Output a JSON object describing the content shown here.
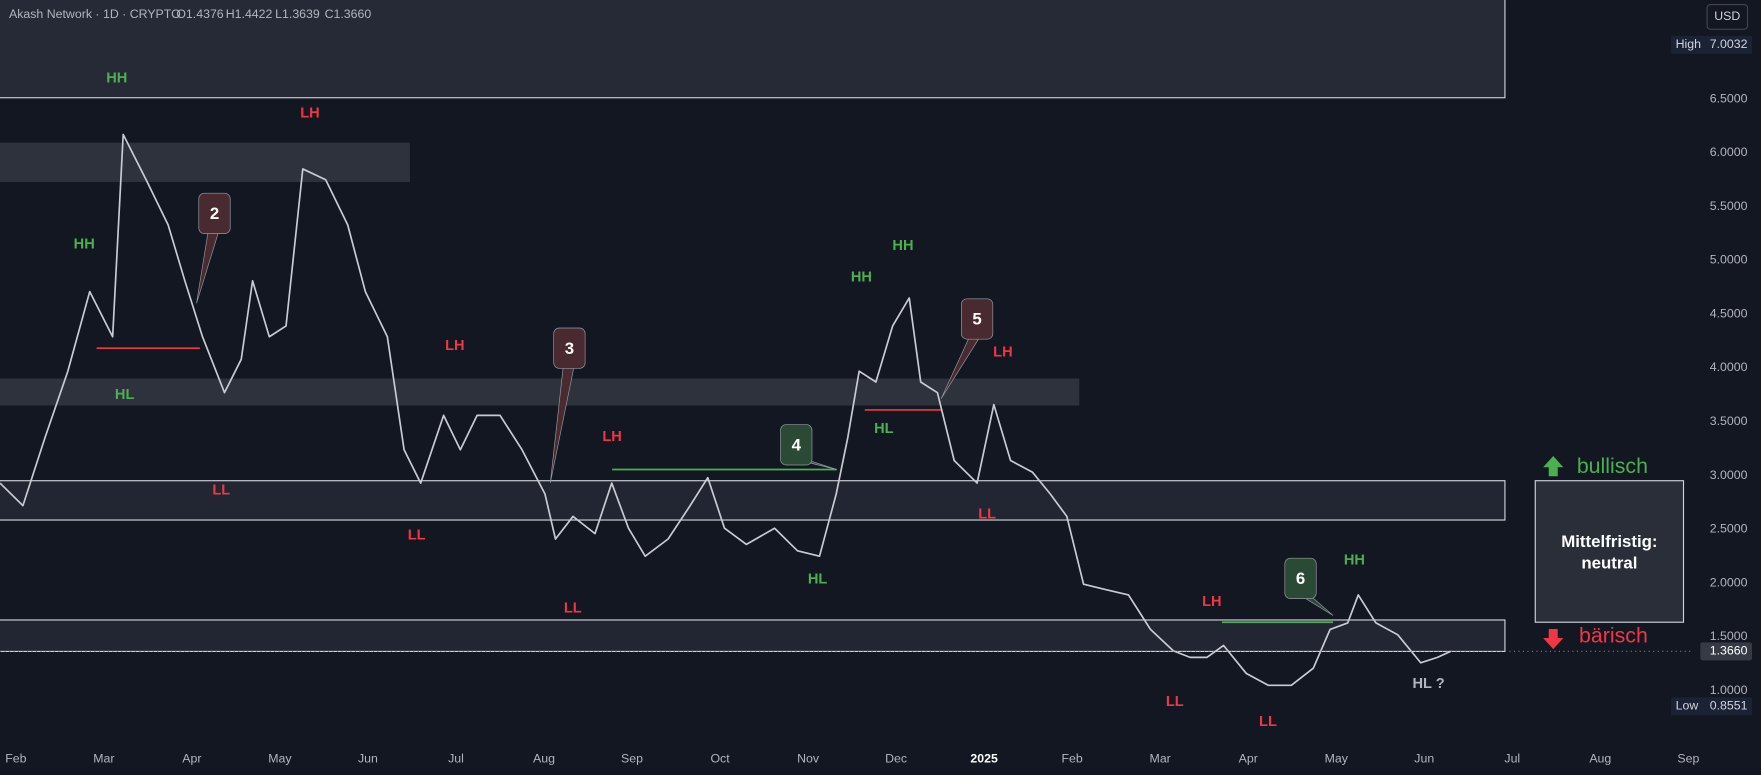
{
  "chart_data": {
    "type": "line",
    "title": "Akash Network · 1D · CRYPTO",
    "ohlc_labels": [
      "O1.4376",
      "H1.4422",
      "L1.3639",
      "C1.3660"
    ],
    "currency": "USD",
    "color": "#c9cbd3",
    "x": [
      -0.18,
      0.08,
      0.33,
      0.59,
      0.84,
      1.1,
      1.22,
      1.48,
      1.73,
      1.92,
      2.12,
      2.37,
      2.56,
      2.69,
      2.88,
      3.07,
      3.26,
      3.52,
      3.77,
      3.97,
      4.22,
      4.41,
      4.6,
      4.86,
      5.05,
      5.24,
      5.5,
      5.75,
      6.01,
      6.13,
      6.33,
      6.58,
      6.77,
      6.96,
      7.15,
      7.41,
      7.66,
      7.86,
      8.05,
      8.3,
      8.62,
      8.88,
      9.13,
      9.32,
      9.45,
      9.58,
      9.77,
      9.96,
      10.15,
      10.28,
      10.47,
      10.66,
      10.92,
      11.11,
      11.3,
      11.55,
      11.75,
      11.94,
      12.13,
      12.38,
      12.64,
      12.89,
      13.15,
      13.34,
      13.53,
      13.72,
      13.98,
      14.23,
      14.49,
      14.74,
      14.93,
      15.13,
      15.25,
      15.45,
      15.7,
      15.96,
      16.15,
      16.3
    ],
    "values": [
      2.93,
      2.72,
      3.35,
      3.97,
      4.71,
      4.29,
      6.17,
      5.75,
      5.33,
      4.81,
      4.29,
      3.77,
      4.08,
      4.81,
      4.29,
      4.39,
      5.85,
      5.75,
      5.33,
      4.71,
      4.29,
      3.24,
      2.93,
      3.56,
      3.24,
      3.56,
      3.56,
      3.24,
      2.83,
      2.41,
      2.62,
      2.46,
      2.93,
      2.51,
      2.25,
      2.41,
      2.72,
      2.98,
      2.51,
      2.36,
      2.51,
      2.3,
      2.25,
      2.83,
      3.35,
      3.97,
      3.87,
      4.39,
      4.65,
      3.87,
      3.77,
      3.14,
      2.93,
      3.66,
      3.14,
      3.03,
      2.83,
      2.62,
      1.99,
      1.94,
      1.89,
      1.57,
      1.37,
      1.31,
      1.31,
      1.42,
      1.16,
      1.05,
      1.05,
      1.21,
      1.57,
      1.63,
      1.89,
      1.63,
      1.52,
      1.26,
      1.31,
      1.366
    ],
    "xlim": [
      -0.18,
      19.06
    ],
    "xticks": [
      {
        "value": 0,
        "label": "Feb"
      },
      {
        "value": 1,
        "label": "Mar"
      },
      {
        "value": 2,
        "label": "Apr"
      },
      {
        "value": 3,
        "label": "May"
      },
      {
        "value": 4,
        "label": "Jun"
      },
      {
        "value": 5,
        "label": "Jul"
      },
      {
        "value": 6,
        "label": "Aug"
      },
      {
        "value": 7,
        "label": "Sep"
      },
      {
        "value": 8,
        "label": "Oct"
      },
      {
        "value": 9,
        "label": "Nov"
      },
      {
        "value": 10,
        "label": "Dec"
      },
      {
        "value": 11,
        "label": "2025"
      },
      {
        "value": 12,
        "label": "Feb"
      },
      {
        "value": 13,
        "label": "Mar"
      },
      {
        "value": 14,
        "label": "Apr"
      },
      {
        "value": 15,
        "label": "May"
      },
      {
        "value": 16,
        "label": "Jun"
      },
      {
        "value": 17,
        "label": "Jul"
      },
      {
        "value": 18,
        "label": "Aug"
      },
      {
        "value": 19,
        "label": "Sep"
      }
    ],
    "ylim": [
      0.53,
      7.42
    ],
    "yticks": [
      {
        "value": 1,
        "label": "1.0000"
      },
      {
        "value": 1.5,
        "label": "1.5000"
      },
      {
        "value": 2,
        "label": "2.0000"
      },
      {
        "value": 2.5,
        "label": "2.5000"
      },
      {
        "value": 3,
        "label": "3.0000"
      },
      {
        "value": 3.5,
        "label": "3.5000"
      },
      {
        "value": 4,
        "label": "4.0000"
      },
      {
        "value": 4.5,
        "label": "4.5000"
      },
      {
        "value": 5,
        "label": "5.0000"
      },
      {
        "value": 5.5,
        "label": "5.5000"
      },
      {
        "value": 6,
        "label": "6.0000"
      },
      {
        "value": 6.5,
        "label": "6.5000"
      }
    ],
    "grid": false,
    "high": {
      "name": "High",
      "value": 7.0032
    },
    "low": {
      "name": "Low",
      "value": 0.8551
    },
    "last_price": {
      "value": 1.366,
      "label": "1.3660"
    },
    "swing_labels": [
      {
        "text": "HH",
        "color": "#4caf50"
      },
      {
        "text": "HH",
        "color": "#4caf50"
      },
      {
        "text": "HL",
        "color": "#4caf50"
      },
      {
        "text": "LL",
        "color": "#f23645"
      },
      {
        "text": "LH",
        "color": "#f23645"
      },
      {
        "text": "LH",
        "color": "#f23645"
      },
      {
        "text": "LL",
        "color": "#f23645"
      },
      {
        "text": "LL",
        "color": "#f23645"
      },
      {
        "text": "LH",
        "color": "#f23645"
      },
      {
        "text": "HL",
        "color": "#4caf50"
      },
      {
        "text": "HH",
        "color": "#4caf50"
      },
      {
        "text": "HH",
        "color": "#4caf50"
      },
      {
        "text": "HL",
        "color": "#4caf50"
      },
      {
        "text": "LH",
        "color": "#f23645"
      },
      {
        "text": "LL",
        "color": "#f23645"
      },
      {
        "text": "LL",
        "color": "#f23645"
      },
      {
        "text": "LH",
        "color": "#f23645"
      },
      {
        "text": "LL",
        "color": "#f23645"
      },
      {
        "text": "HH",
        "color": "#4caf50"
      },
      {
        "text": "HL ?",
        "color": "#b2b5be"
      }
    ],
    "callouts": [
      {
        "text": "2",
        "color": "#4a2a31"
      },
      {
        "text": "3",
        "color": "#4a2a31"
      },
      {
        "text": "4",
        "color": "#2b4a36"
      },
      {
        "text": "5",
        "color": "#4a2a31"
      },
      {
        "text": "6",
        "color": "#2b4a36"
      }
    ],
    "outlook": {
      "bullish": "bullisch",
      "bearish": "bärisch",
      "lines": [
        "Mittelfristig:",
        "neutral"
      ],
      "bullish_color": "#4caf50",
      "bearish_color": "#f23645"
    }
  }
}
